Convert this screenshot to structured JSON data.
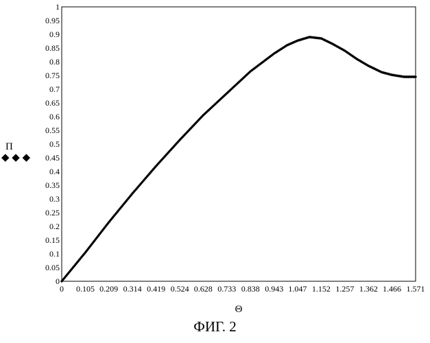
{
  "chart_data": {
    "type": "scatter",
    "title": "",
    "xlabel": "Θ",
    "ylabel": "П",
    "ylabel_marker": "◆  ◆  ◆",
    "xlim": [
      0,
      1.571
    ],
    "ylim": [
      0,
      1
    ],
    "grid": false,
    "legend": "none",
    "x_ticks": [
      "0",
      "0.105",
      "0.209",
      "0.314",
      "0.419",
      "0.524",
      "0.628",
      "0.733",
      "0.838",
      "0.943",
      "1.047",
      "1.152",
      "1.257",
      "1.362",
      "1.466",
      "1.571"
    ],
    "y_ticks": [
      "0",
      "0.05",
      "0.1",
      "0.15",
      "0.2",
      "0.25",
      "0.3",
      "0.35",
      "0.4",
      "0.45",
      "0.5",
      "0.55",
      "0.6",
      "0.65",
      "0.7",
      "0.75",
      "0.8",
      "0.85",
      "0.9",
      "0.95",
      "1"
    ],
    "marker_color": "#000000",
    "series": [
      {
        "x": [
          0,
          0.105,
          0.209,
          0.314,
          0.419,
          0.524,
          0.628,
          0.733,
          0.838,
          0.943,
          1.0,
          1.047,
          1.1,
          1.152,
          1.2,
          1.257,
          1.31,
          1.362,
          1.42,
          1.466,
          1.52,
          1.571
        ],
        "y": [
          0,
          0.105,
          0.215,
          0.32,
          0.42,
          0.515,
          0.605,
          0.685,
          0.765,
          0.83,
          0.86,
          0.877,
          0.89,
          0.885,
          0.866,
          0.84,
          0.81,
          0.785,
          0.762,
          0.752,
          0.745,
          0.745
        ]
      }
    ]
  },
  "caption": "ФИГ. 2"
}
